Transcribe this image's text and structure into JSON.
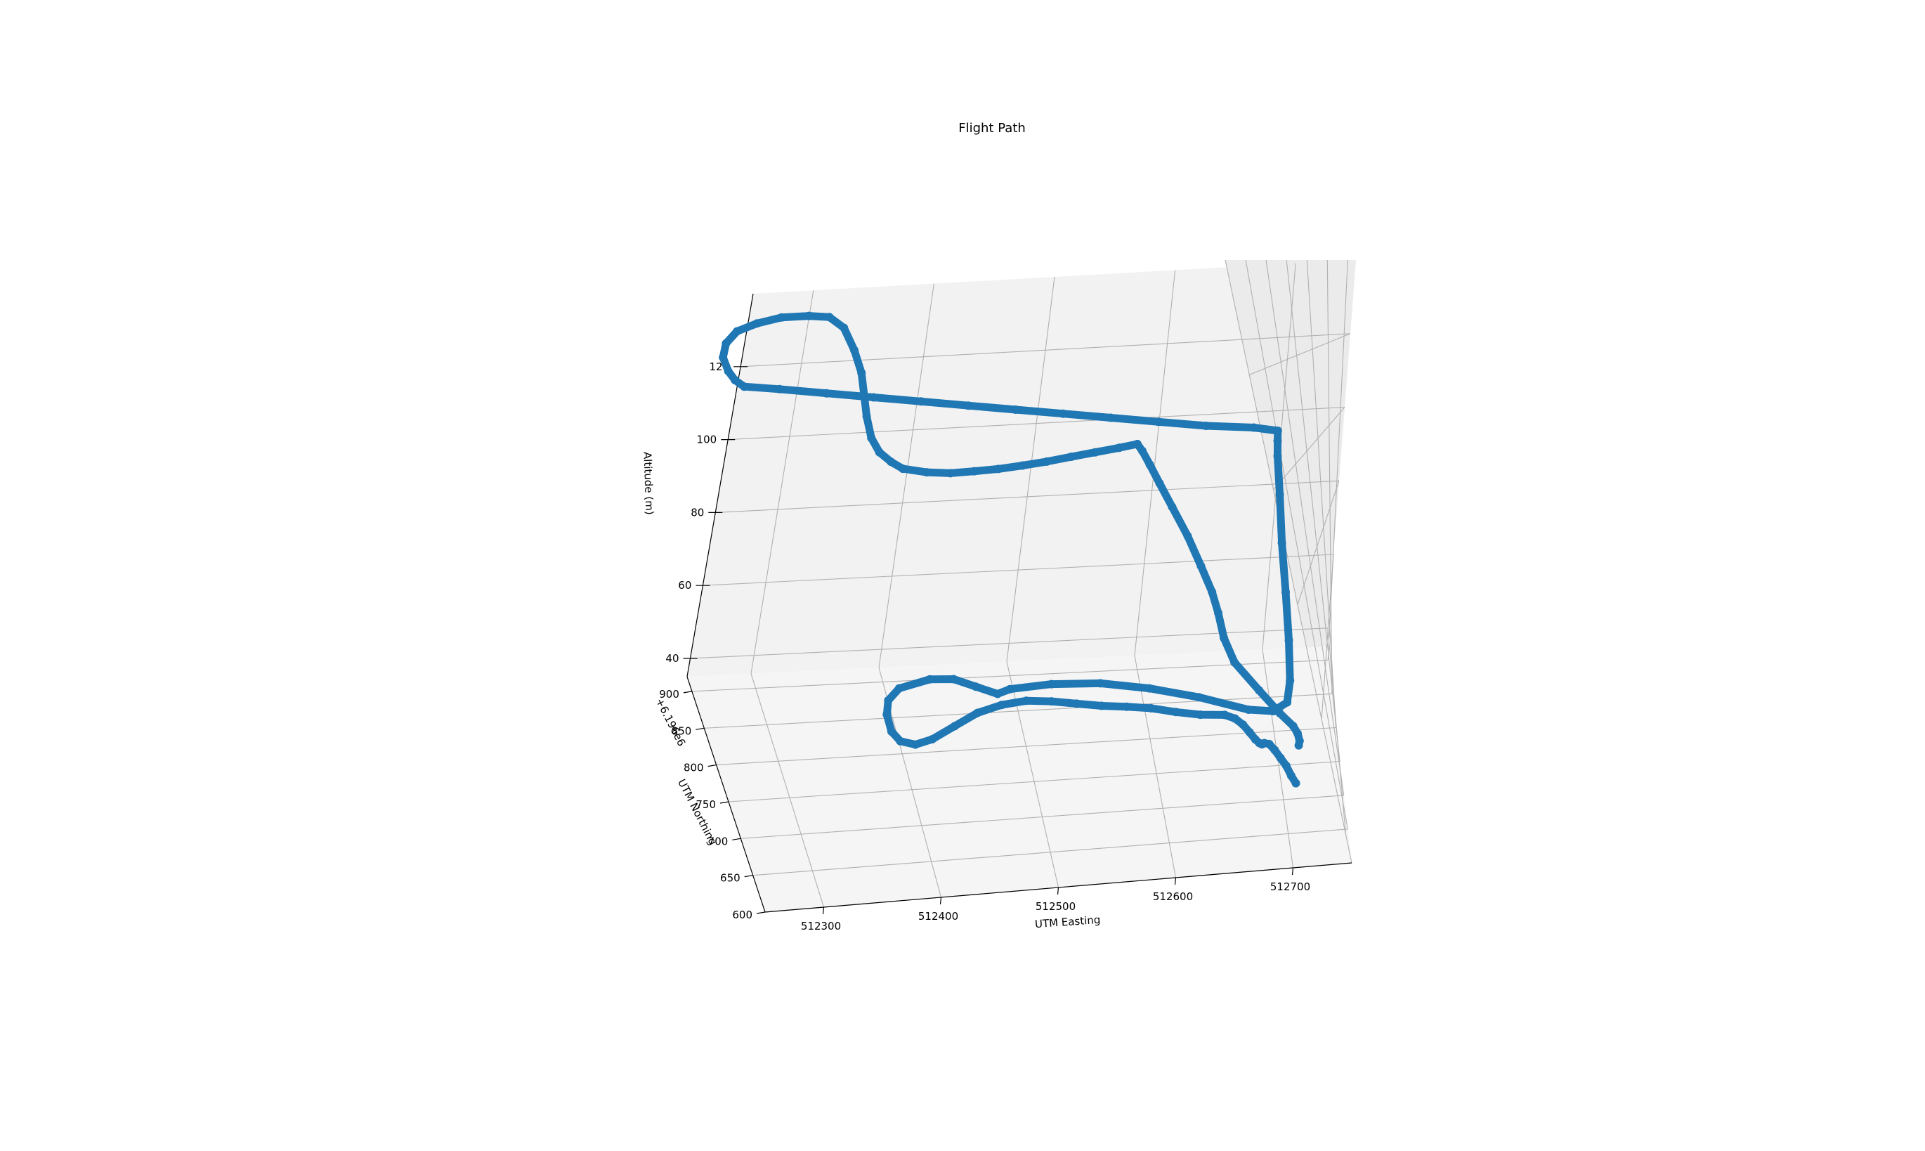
{
  "chart_data": {
    "type": "line",
    "projection": "3d",
    "title": "Flight Path",
    "xlabel": "UTM Easting",
    "ylabel": "UTM Northing",
    "zlabel": "Altitude (m)",
    "y_offset_label": "+6.196e6",
    "xlim": [
      512250,
      512750
    ],
    "ylim": [
      600,
      920
    ],
    "zlim": [
      35,
      140
    ],
    "x_ticks": [
      "512300",
      "512400",
      "512500",
      "512600",
      "512700"
    ],
    "y_ticks": [
      "600",
      "650",
      "700",
      "750",
      "800",
      "850",
      "900"
    ],
    "z_ticks": [
      "40",
      "60",
      "80",
      "100",
      "120"
    ],
    "grid": true,
    "legend": "none",
    "colors": {
      "series": "#1f77b4",
      "pane_back": "#f2f2f2",
      "pane_side": "#ebebeb",
      "pane_floor": "#f5f5f5",
      "grid": "#b0b0b0"
    },
    "series": [
      {
        "x": [
          512712,
          512709,
          512706,
          512702,
          512698,
          512694,
          512690,
          512688,
          512686,
          512683,
          512679,
          512674,
          512668,
          512660,
          512640,
          512620,
          512600,
          512580,
          512560,
          512540,
          512520,
          512500,
          512480,
          512460,
          512440,
          512420,
          512405,
          512392,
          512385,
          512382,
          512384,
          512394,
          512420,
          512440,
          512458,
          512476,
          512486,
          512520,
          512560,
          512600,
          512640,
          512680,
          512700,
          512712,
          512716,
          512718,
          512719,
          512719,
          512720,
          512720,
          512720,
          512720,
          512700,
          512660,
          512620,
          512580,
          512540,
          512500,
          512460,
          512420,
          512380,
          512340,
          512300,
          512270,
          512262,
          512256,
          512251,
          512253,
          512262,
          512279,
          512300,
          512324,
          512342,
          512355,
          512364,
          512370,
          512372,
          512374,
          512378,
          512385,
          512395,
          512405,
          512425,
          512445,
          512465,
          512485,
          512505,
          512525,
          512545,
          512565,
          512585,
          512600,
          512604,
          512610,
          512618,
          512628,
          512640,
          512650,
          512658,
          512662,
          512665,
          512672,
          512690,
          512705,
          512715,
          512718,
          512719,
          512718
        ],
        "y": [
          700,
          704,
          708,
          713,
          718,
          724,
          730,
          736,
          742,
          748,
          752,
          750,
          745,
          740,
          739,
          742,
          747,
          752,
          760,
          770,
          780,
          787,
          790,
          787,
          776,
          762,
          752,
          744,
          741,
          741,
          744,
          751,
          759,
          765,
          770,
          775,
          770,
          762,
          754,
          748,
          744,
          742,
          745,
          750,
          754,
          758,
          760,
          765,
          770,
          775,
          780,
          784,
          784,
          784,
          784,
          784,
          784,
          784,
          784,
          784,
          784,
          784,
          784,
          784,
          785,
          787,
          790,
          793,
          795,
          795,
          795,
          793,
          790,
          787,
          785,
          784,
          784,
          782,
          778,
          774,
          770,
          768,
          767,
          767,
          769,
          772,
          776,
          780,
          784,
          787,
          790,
          792,
          791,
          789,
          785,
          780,
          774,
          767,
          760,
          755,
          752,
          750,
          749,
          749,
          750,
          753,
          756,
          760
        ],
        "z": [
          38.0,
          39.0,
          40.5,
          41.5,
          42.5,
          43.0,
          42.5,
          41.5,
          41.0,
          41.0,
          42.0,
          44.0,
          46.0,
          47.5,
          48.0,
          48.5,
          49.0,
          49.0,
          48.5,
          48.0,
          47.5,
          47.0,
          46.0,
          45.0,
          44.0,
          43.5,
          44.0,
          46.0,
          48.5,
          52.0,
          54.5,
          56.0,
          56.5,
          55.5,
          53.0,
          50.5,
          52.0,
          53.5,
          54.0,
          53.0,
          51.0,
          48.0,
          47.0,
          48.0,
          52.0,
          60.0,
          70.0,
          80.0,
          90.0,
          98.0,
          101.0,
          103.0,
          104.0,
          105.0,
          106.5,
          108.0,
          109.5,
          111.0,
          112.5,
          114.0,
          115.5,
          117.0,
          118.5,
          119.5,
          121.0,
          123.0,
          126.0,
          129.0,
          131.5,
          133.0,
          134.0,
          134.0,
          133.5,
          131.0,
          126.0,
          121.0,
          116.0,
          111.5,
          107.0,
          104.0,
          102.0,
          100.5,
          99.5,
          99.0,
          99.0,
          99.0,
          99.2,
          99.5,
          100.0,
          100.5,
          101.0,
          101.5,
          100.0,
          97.0,
          93.0,
          88.0,
          82.0,
          76.0,
          71.0,
          67.0,
          62.0,
          57.0,
          51.0,
          46.0,
          43.0,
          41.0,
          39.0,
          37.5
        ]
      }
    ]
  }
}
